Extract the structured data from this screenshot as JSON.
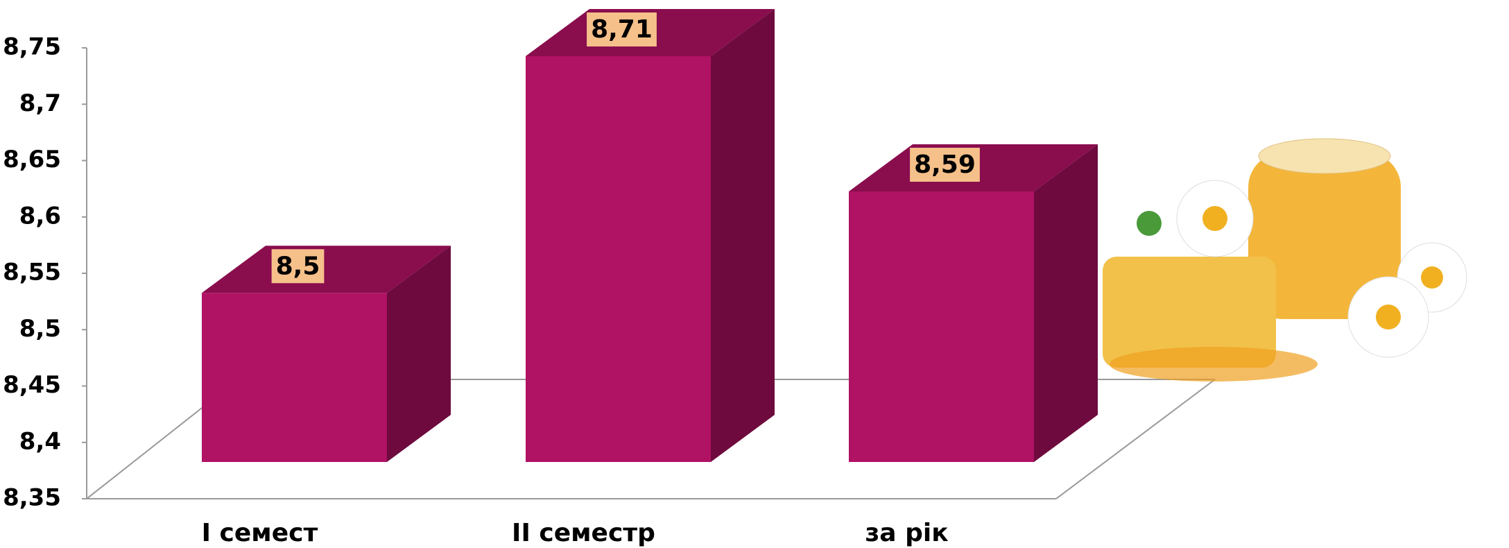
{
  "chart_data": {
    "type": "bar3d",
    "categories": [
      "I семест",
      "II семестр",
      "за рік"
    ],
    "values": [
      8.5,
      8.71,
      8.59
    ],
    "value_labels": [
      "8,5",
      "8,71",
      "8,59"
    ],
    "colors": {
      "front": "#b01264",
      "top": "#8a0d4e",
      "side": "#6e0a3e",
      "label_bg": "#f5c08a"
    },
    "ylim": [
      8.35,
      8.75
    ],
    "yticks": [
      {
        "value": 8.35,
        "label": "8,35"
      },
      {
        "value": 8.4,
        "label": "8,4"
      },
      {
        "value": 8.45,
        "label": "8,45"
      },
      {
        "value": 8.5,
        "label": "8,5"
      },
      {
        "value": 8.55,
        "label": "8,55"
      },
      {
        "value": 8.6,
        "label": "8,6"
      },
      {
        "value": 8.65,
        "label": "8,65"
      },
      {
        "value": 8.7,
        "label": "8,7"
      },
      {
        "value": 8.75,
        "label": "8,75"
      }
    ]
  }
}
